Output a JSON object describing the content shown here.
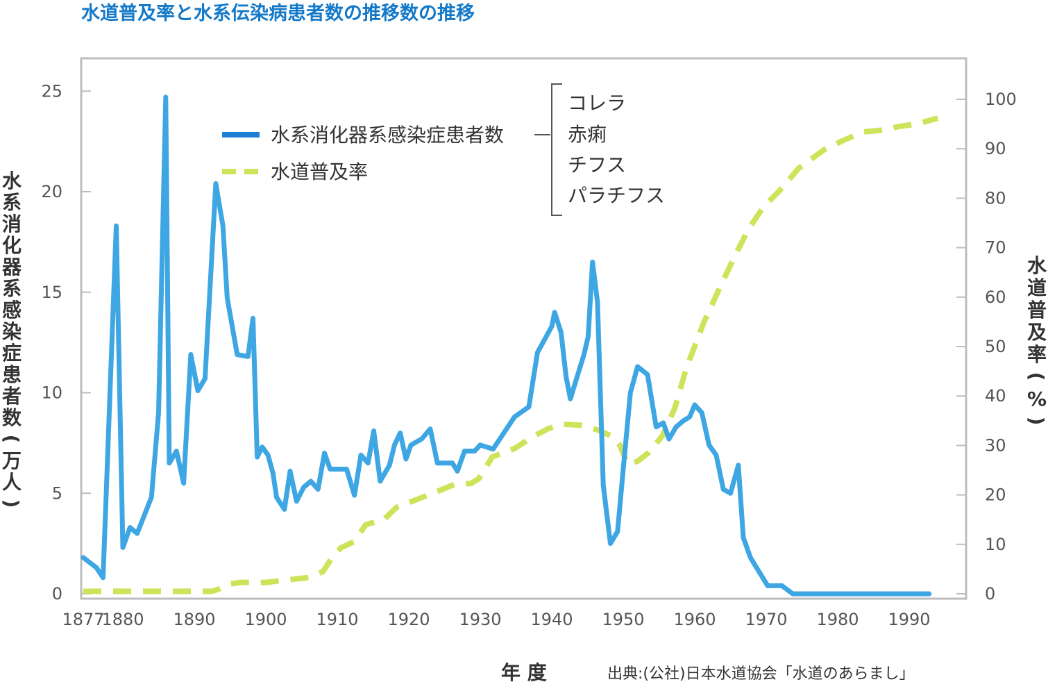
{
  "title": "水道普及率と水系伝染病患者数の推移数の推移",
  "colors": {
    "title": "#1479c8",
    "disease": "#3ea6e3",
    "water": "#cfe35a",
    "frame": "#bdbdbd",
    "legend_disease": "#1c7fd1"
  },
  "chart_data": {
    "type": "line",
    "xlabel": "年 度",
    "ylabel": "水系消化器系感染症患者数(万人)",
    "y2label": "水道普及率(%)",
    "xlim": [
      1877,
      1994
    ],
    "ylim": [
      0,
      27
    ],
    "y2lim": [
      0,
      100
    ],
    "x_ticks": [
      "1877",
      "1880",
      "1890",
      "1900",
      "1910",
      "1920",
      "1930",
      "1940",
      "1950",
      "1960",
      "1970",
      "1980",
      "1990"
    ],
    "y_ticks": [
      "0",
      "5",
      "10",
      "15",
      "20",
      "25"
    ],
    "y2_ticks": [
      "0",
      "10",
      "20",
      "30",
      "40",
      "50",
      "60",
      "70",
      "80",
      "90",
      "100"
    ],
    "grid": false,
    "legend": {
      "position": "top-center",
      "series": [
        "水系消化器系感染症患者数",
        "水道普及率"
      ],
      "breakdown": [
        "コレラ",
        "赤痢",
        "チフス",
        "パラチフス"
      ]
    },
    "source": "出典:(公社)日本水道協会「水道のあらまし」",
    "series": [
      {
        "name": "水系消化器系感染症患者数",
        "axis": "left",
        "style": "solid",
        "points": [
          [
            1877,
            1.8
          ],
          [
            1878,
            1.3
          ],
          [
            1878.5,
            0.8
          ],
          [
            1879.5,
            18.3
          ],
          [
            1880,
            2.3
          ],
          [
            1881,
            3.3
          ],
          [
            1882,
            3.0
          ],
          [
            1884,
            4.8
          ],
          [
            1885,
            9.0
          ],
          [
            1886,
            24.7
          ],
          [
            1886.5,
            6.5
          ],
          [
            1887.5,
            7.1
          ],
          [
            1888.5,
            5.5
          ],
          [
            1889.5,
            11.9
          ],
          [
            1890.5,
            10.1
          ],
          [
            1891.5,
            10.7
          ],
          [
            1893,
            20.4
          ],
          [
            1894,
            18.3
          ],
          [
            1894.6,
            14.7
          ],
          [
            1896,
            11.9
          ],
          [
            1897.5,
            11.8
          ],
          [
            1898.2,
            13.7
          ],
          [
            1898.8,
            6.8
          ],
          [
            1899.5,
            7.3
          ],
          [
            1900.3,
            6.9
          ],
          [
            1901,
            6.0
          ],
          [
            1901.5,
            4.8
          ],
          [
            1902.6,
            4.2
          ],
          [
            1903.4,
            6.1
          ],
          [
            1904.3,
            4.6
          ],
          [
            1905.3,
            5.3
          ],
          [
            1906.3,
            5.6
          ],
          [
            1907.3,
            5.2
          ],
          [
            1908.2,
            7.0
          ],
          [
            1909,
            6.2
          ],
          [
            1911.3,
            6.2
          ],
          [
            1912.4,
            4.9
          ],
          [
            1913.3,
            6.9
          ],
          [
            1914.3,
            6.5
          ],
          [
            1915.1,
            8.1
          ],
          [
            1916,
            5.6
          ],
          [
            1917.3,
            6.4
          ],
          [
            1918,
            7.4
          ],
          [
            1918.8,
            8.0
          ],
          [
            1919.6,
            6.7
          ],
          [
            1920.3,
            7.4
          ],
          [
            1921.8,
            7.7
          ],
          [
            1923,
            8.2
          ],
          [
            1924,
            6.5
          ],
          [
            1926.1,
            6.5
          ],
          [
            1926.8,
            6.1
          ],
          [
            1927.8,
            7.1
          ],
          [
            1929.2,
            7.1
          ],
          [
            1930,
            7.4
          ],
          [
            1931.8,
            7.2
          ],
          [
            1934.8,
            8.8
          ],
          [
            1936.8,
            9.3
          ],
          [
            1938,
            12.0
          ],
          [
            1940,
            13.3
          ],
          [
            1940.4,
            14.0
          ],
          [
            1941.3,
            13.0
          ],
          [
            1942,
            10.8
          ],
          [
            1942.6,
            9.7
          ],
          [
            1944.5,
            11.9
          ],
          [
            1945.1,
            12.8
          ],
          [
            1945.7,
            16.5
          ],
          [
            1946.4,
            14.5
          ],
          [
            1947.2,
            5.4
          ],
          [
            1948.2,
            2.5
          ],
          [
            1949.2,
            3.1
          ],
          [
            1950.2,
            7.0
          ],
          [
            1951,
            10.0
          ],
          [
            1952,
            11.3
          ],
          [
            1953.4,
            10.9
          ],
          [
            1954.6,
            8.3
          ],
          [
            1955.6,
            8.5
          ],
          [
            1956.4,
            7.7
          ],
          [
            1957.4,
            8.3
          ],
          [
            1958.4,
            8.6
          ],
          [
            1959.3,
            8.8
          ],
          [
            1960,
            9.4
          ],
          [
            1961,
            9.0
          ],
          [
            1962,
            7.4
          ],
          [
            1963,
            6.9
          ],
          [
            1964,
            5.2
          ],
          [
            1965,
            5.0
          ],
          [
            1966.1,
            6.4
          ],
          [
            1966.8,
            2.8
          ],
          [
            1967.8,
            1.8
          ],
          [
            1970.2,
            0.4
          ],
          [
            1972.2,
            0.4
          ],
          [
            1973.7,
            0.0
          ],
          [
            1975,
            0.0
          ],
          [
            1992.8,
            0.0
          ]
        ]
      },
      {
        "name": "水道普及率",
        "axis": "right",
        "style": "dashed",
        "points": [
          [
            1877,
            0.5
          ],
          [
            1880,
            0.5
          ],
          [
            1885,
            0.5
          ],
          [
            1890,
            0.5
          ],
          [
            1892.5,
            0.5
          ],
          [
            1893.5,
            1.0
          ],
          [
            1895,
            2.0
          ],
          [
            1896.5,
            2.3
          ],
          [
            1898,
            2.3
          ],
          [
            1900,
            2.3
          ],
          [
            1903,
            2.8
          ],
          [
            1906,
            3.3
          ],
          [
            1908,
            4.5
          ],
          [
            1909.3,
            7.4
          ],
          [
            1910.5,
            9.3
          ],
          [
            1912.3,
            10.5
          ],
          [
            1914,
            14.0
          ],
          [
            1916.5,
            15.0
          ],
          [
            1918.3,
            17.5
          ],
          [
            1921,
            19.0
          ],
          [
            1924,
            20.7
          ],
          [
            1926.5,
            22.2
          ],
          [
            1928.7,
            22.3
          ],
          [
            1929.8,
            23.3
          ],
          [
            1931.7,
            27.7
          ],
          [
            1934.7,
            29.3
          ],
          [
            1937.5,
            31.9
          ],
          [
            1939.5,
            33.4
          ],
          [
            1941.5,
            34.3
          ],
          [
            1944,
            34.1
          ],
          [
            1946.5,
            33.1
          ],
          [
            1948.5,
            31.8
          ],
          [
            1949.5,
            30.1
          ],
          [
            1950.6,
            26.2
          ],
          [
            1952,
            26.8
          ],
          [
            1953.5,
            28.5
          ],
          [
            1955.5,
            32.0
          ],
          [
            1957.2,
            37.5
          ],
          [
            1958.8,
            45.5
          ],
          [
            1961.3,
            55.0
          ],
          [
            1963.5,
            61.9
          ],
          [
            1965.5,
            68.0
          ],
          [
            1967.5,
            73.7
          ],
          [
            1969.5,
            78.0
          ],
          [
            1972.5,
            82.5
          ],
          [
            1974.5,
            86.0
          ],
          [
            1978,
            89.7
          ],
          [
            1980.5,
            91.5
          ],
          [
            1983.5,
            93.4
          ],
          [
            1986.5,
            93.8
          ],
          [
            1988.5,
            94.5
          ],
          [
            1991,
            95.0
          ],
          [
            1994,
            96.2
          ]
        ]
      }
    ]
  }
}
